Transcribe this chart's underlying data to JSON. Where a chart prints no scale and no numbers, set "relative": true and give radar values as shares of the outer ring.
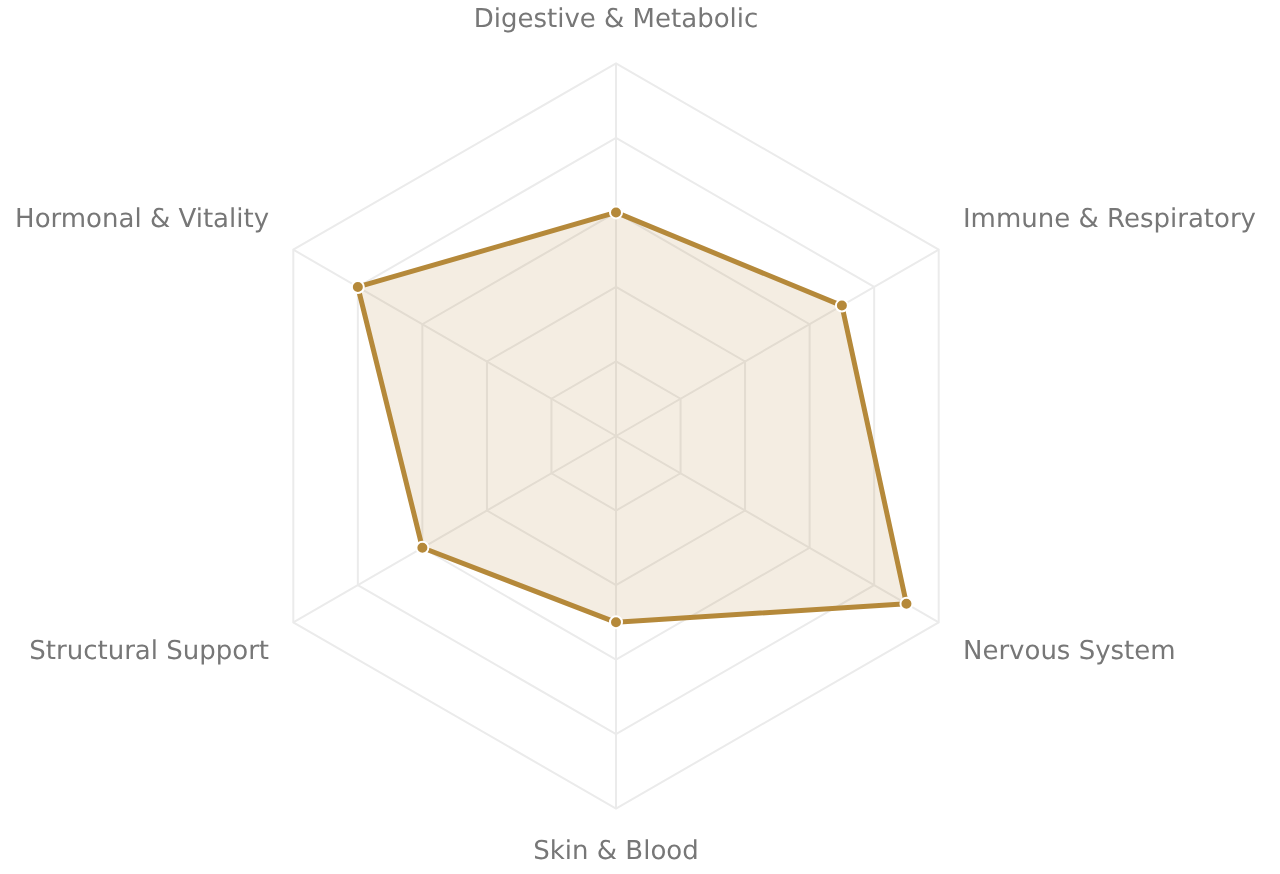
{
  "chart_data": {
    "type": "radar",
    "relative": true,
    "grid": true,
    "marker": "circle",
    "legend": false,
    "categories": [
      "Digestive & Metabolic",
      "Immune & Respiratory",
      "Nervous System",
      "Skin & Blood",
      "Structural Support",
      "Hormonal & Vitality"
    ],
    "series": [
      {
        "color": "#b5893a",
        "values": [
          0.6,
          0.7,
          0.9,
          0.5,
          0.6,
          0.8
        ]
      }
    ]
  }
}
